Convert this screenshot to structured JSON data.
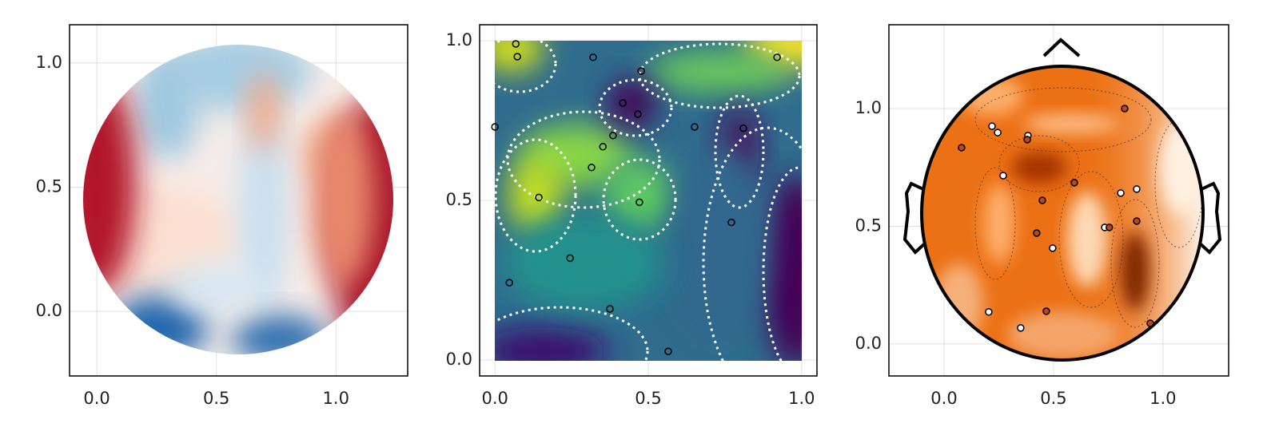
{
  "chart_data": [
    {
      "type": "heatmap",
      "colormap": "RdBu",
      "xlim": [
        -0.114,
        1.3
      ],
      "ylim": [
        -0.26,
        1.154
      ],
      "xticks": [
        {
          "value": 0,
          "label": "0.0"
        },
        0.5,
        {
          "value": 1,
          "label": "1.0"
        }
      ],
      "yticks": [
        {
          "value": 0,
          "label": "0.0"
        },
        0.5,
        {
          "value": 1,
          "label": "1.0"
        }
      ],
      "grid": true
    },
    {
      "type": "contour",
      "colormap": "viridis",
      "xlim": [
        -0.05,
        1.05
      ],
      "ylim": [
        -0.05,
        1.05
      ],
      "xticks": [
        {
          "value": 0,
          "label": "0.0"
        },
        0.5,
        {
          "value": 1,
          "label": "1.0"
        }
      ],
      "yticks": [
        {
          "value": 0,
          "label": "0.0"
        },
        0.5,
        {
          "value": 1,
          "label": "1.0"
        }
      ],
      "grid": true,
      "series": [
        {
          "color": "#000000",
          "x": [
            0.068,
            0.073,
            0.32,
            0.477,
            0.92,
            0.417,
            0.466,
            0.0,
            0.651,
            0.81,
            0.385,
            0.352,
            0.315,
            0.143,
            0.471,
            0.771,
            0.245,
            0.047,
            0.375,
            0.565
          ],
          "values": [
            0.99,
            0.95,
            0.948,
            0.905,
            0.948,
            0.805,
            0.77,
            0.73,
            0.73,
            0.726,
            0.703,
            0.668,
            0.603,
            0.509,
            0.494,
            0.431,
            0.319,
            0.242,
            0.16,
            0.027
          ]
        }
      ]
    },
    {
      "type": "topoplot",
      "colormap": "Oranges",
      "xlim": [
        -0.252,
        1.3
      ],
      "ylim": [
        -0.136,
        1.356
      ],
      "xticks": [
        {
          "value": 0,
          "label": "0.0"
        },
        0.5,
        {
          "value": 1,
          "label": "1.0"
        }
      ],
      "yticks": [
        {
          "value": 0,
          "label": "0.0"
        },
        0.5,
        {
          "value": 1,
          "label": "1.0"
        }
      ],
      "grid": true,
      "series": [
        {
          "color": "#000000",
          "x": [
            0.825,
            0.219,
            0.245,
            0.383,
            0.38,
            0.08,
            0.27,
            0.595,
            0.449,
            0.88,
            0.807,
            0.88,
            0.734,
            0.755,
            0.423,
            0.496,
            0.204,
            0.467,
            0.35,
            0.942
          ],
          "values": [
            1.0,
            0.925,
            0.898,
            0.885,
            0.868,
            0.834,
            0.715,
            0.685,
            0.61,
            0.658,
            0.641,
            0.522,
            0.495,
            0.495,
            0.471,
            0.407,
            0.136,
            0.139,
            0.068,
            0.088
          ],
          "fill_colors": [
            "#b84a12",
            "#ffffff",
            "#ffffff",
            "#ffffff",
            "#b84a12",
            "#b84a12",
            "#ffffff",
            "#b84a12",
            "#b84a12",
            "#ffffff",
            "#ffffff",
            "#b84a12",
            "#ffffff",
            "#b84a12",
            "#b84a12",
            "#ffffff",
            "#ffffff",
            "#b84a12",
            "#ffffff",
            "#b84a12"
          ]
        }
      ]
    }
  ]
}
